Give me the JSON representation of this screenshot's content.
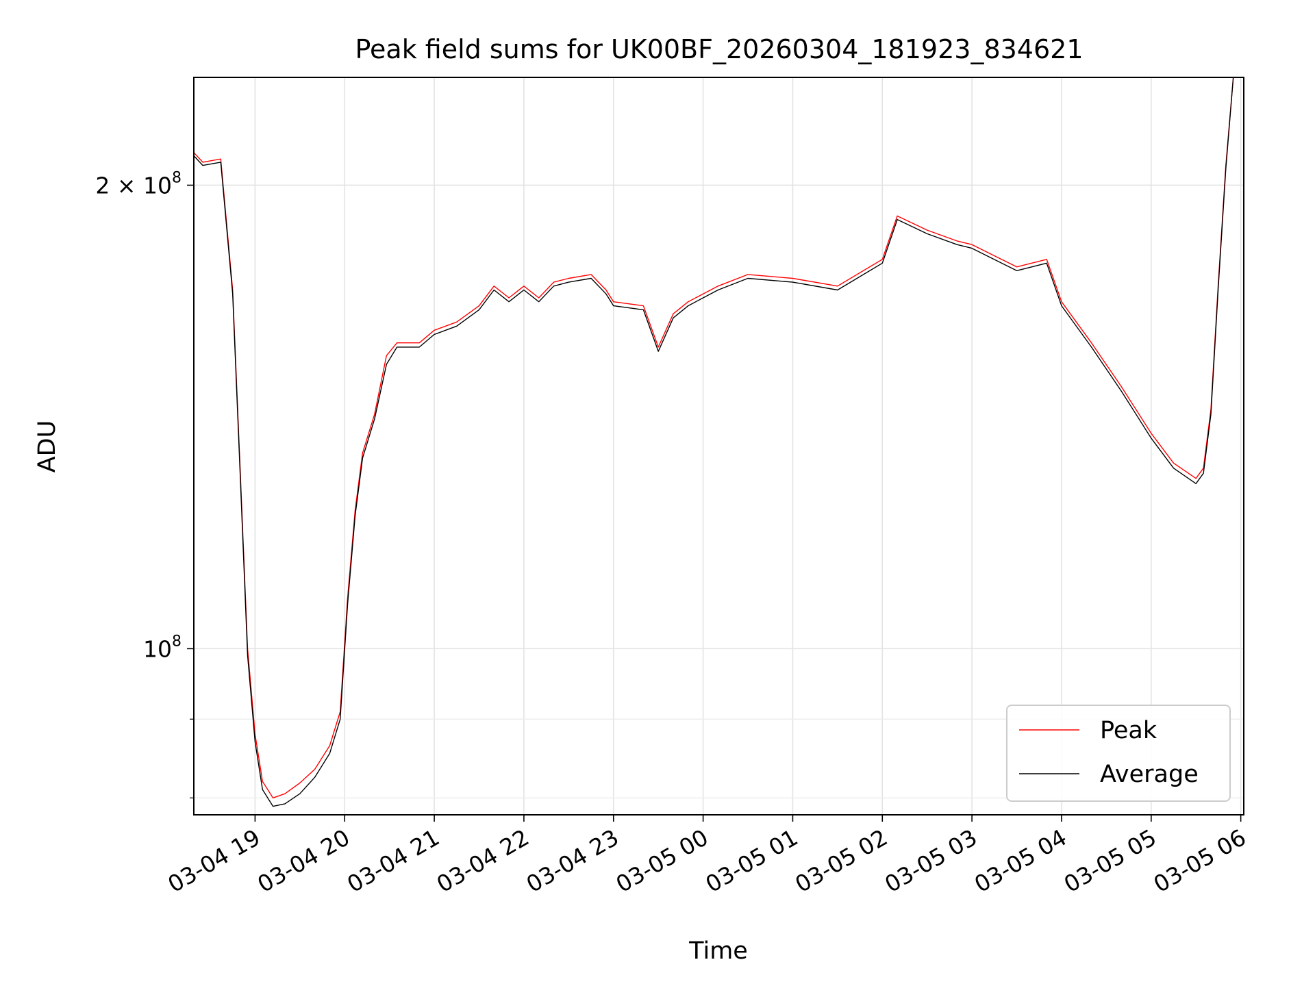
{
  "chart_data": {
    "type": "line",
    "title": "Peak field sums for UK00BF_20260304_181923_834621",
    "xlabel": "Time",
    "ylabel": "ADU",
    "yscale": "log",
    "ylim": [
      78000000,
      235000000
    ],
    "xlim": [
      "2026-03-04 18:19",
      "2026-03-05 06:02"
    ],
    "grid": true,
    "legend_position": "lower right",
    "x_ticks": [
      {
        "t": "2026-03-04 19:00",
        "label": "03-04 19"
      },
      {
        "t": "2026-03-04 20:00",
        "label": "03-04 20"
      },
      {
        "t": "2026-03-04 21:00",
        "label": "03-04 21"
      },
      {
        "t": "2026-03-04 22:00",
        "label": "03-04 22"
      },
      {
        "t": "2026-03-04 23:00",
        "label": "03-04 23"
      },
      {
        "t": "2026-03-05 00:00",
        "label": "03-05 00"
      },
      {
        "t": "2026-03-05 01:00",
        "label": "03-05 01"
      },
      {
        "t": "2026-03-05 02:00",
        "label": "03-05 02"
      },
      {
        "t": "2026-03-05 03:00",
        "label": "03-05 03"
      },
      {
        "t": "2026-03-05 04:00",
        "label": "03-05 04"
      },
      {
        "t": "2026-03-05 05:00",
        "label": "03-05 05"
      },
      {
        "t": "2026-03-05 06:00",
        "label": "03-05 06"
      }
    ],
    "y_ticks": [
      {
        "value": 100000000,
        "mant": "",
        "exp": "8",
        "base": "10"
      },
      {
        "value": 200000000,
        "mant": "2 × ",
        "exp": "8",
        "base": "10"
      }
    ],
    "y_minor_ticks": [
      80000000,
      90000000
    ],
    "series": [
      {
        "name": "Average",
        "color": "#000000",
        "points": [
          [
            "2026-03-04 18:19",
            209000000
          ],
          [
            "2026-03-04 18:25",
            206000000
          ],
          [
            "2026-03-04 18:37",
            207000000
          ],
          [
            "2026-03-04 18:45",
            170000000
          ],
          [
            "2026-03-04 18:50",
            130000000
          ],
          [
            "2026-03-04 18:55",
            99000000
          ],
          [
            "2026-03-04 19:00",
            87000000
          ],
          [
            "2026-03-04 19:05",
            81000000
          ],
          [
            "2026-03-04 19:12",
            79000000
          ],
          [
            "2026-03-04 19:20",
            79300000
          ],
          [
            "2026-03-04 19:30",
            80500000
          ],
          [
            "2026-03-04 19:40",
            82500000
          ],
          [
            "2026-03-04 19:50",
            85500000
          ],
          [
            "2026-03-04 19:57",
            90000000
          ],
          [
            "2026-03-04 20:02",
            107000000
          ],
          [
            "2026-03-04 20:07",
            122000000
          ],
          [
            "2026-03-04 20:12",
            133000000
          ],
          [
            "2026-03-04 20:20",
            141000000
          ],
          [
            "2026-03-04 20:28",
            153000000
          ],
          [
            "2026-03-04 20:35",
            157000000
          ],
          [
            "2026-03-04 20:50",
            157000000
          ],
          [
            "2026-03-04 21:00",
            160000000
          ],
          [
            "2026-03-04 21:15",
            162000000
          ],
          [
            "2026-03-04 21:30",
            166000000
          ],
          [
            "2026-03-04 21:40",
            171000000
          ],
          [
            "2026-03-04 21:50",
            168000000
          ],
          [
            "2026-03-04 22:00",
            171000000
          ],
          [
            "2026-03-04 22:10",
            168000000
          ],
          [
            "2026-03-04 22:20",
            172000000
          ],
          [
            "2026-03-04 22:30",
            173000000
          ],
          [
            "2026-03-04 22:45",
            174000000
          ],
          [
            "2026-03-04 22:55",
            170000000
          ],
          [
            "2026-03-04 23:00",
            167000000
          ],
          [
            "2026-03-04 23:20",
            166000000
          ],
          [
            "2026-03-04 23:30",
            156000000
          ],
          [
            "2026-03-04 23:40",
            164000000
          ],
          [
            "2026-03-04 23:50",
            167000000
          ],
          [
            "2026-03-05 00:00",
            169000000
          ],
          [
            "2026-03-05 00:10",
            171000000
          ],
          [
            "2026-03-05 00:30",
            174000000
          ],
          [
            "2026-03-05 01:00",
            173000000
          ],
          [
            "2026-03-05 01:30",
            171000000
          ],
          [
            "2026-03-05 02:00",
            178000000
          ],
          [
            "2026-03-05 02:10",
            190000000
          ],
          [
            "2026-03-05 02:30",
            186000000
          ],
          [
            "2026-03-05 02:50",
            183000000
          ],
          [
            "2026-03-05 03:00",
            182000000
          ],
          [
            "2026-03-05 03:30",
            176000000
          ],
          [
            "2026-03-05 03:50",
            178000000
          ],
          [
            "2026-03-05 04:00",
            167000000
          ],
          [
            "2026-03-05 04:20",
            157000000
          ],
          [
            "2026-03-05 04:40",
            147000000
          ],
          [
            "2026-03-05 05:00",
            137000000
          ],
          [
            "2026-03-05 05:15",
            131000000
          ],
          [
            "2026-03-05 05:30",
            128000000
          ],
          [
            "2026-03-05 05:35",
            130000000
          ],
          [
            "2026-03-05 05:40",
            142000000
          ],
          [
            "2026-03-05 05:45",
            172000000
          ],
          [
            "2026-03-05 05:50",
            205000000
          ],
          [
            "2026-03-05 05:55",
            235000000
          ]
        ]
      },
      {
        "name": "Peak",
        "color": "#ff0000",
        "points": [
          [
            "2026-03-04 18:19",
            210000000
          ],
          [
            "2026-03-04 18:25",
            207000000
          ],
          [
            "2026-03-04 18:37",
            208000000
          ],
          [
            "2026-03-04 18:45",
            171000000
          ],
          [
            "2026-03-04 18:50",
            131000000
          ],
          [
            "2026-03-04 18:55",
            100000000
          ],
          [
            "2026-03-04 19:00",
            88000000
          ],
          [
            "2026-03-04 19:05",
            82000000
          ],
          [
            "2026-03-04 19:12",
            80000000
          ],
          [
            "2026-03-04 19:20",
            80500000
          ],
          [
            "2026-03-04 19:30",
            81800000
          ],
          [
            "2026-03-04 19:40",
            83500000
          ],
          [
            "2026-03-04 19:50",
            86500000
          ],
          [
            "2026-03-04 19:57",
            91000000
          ],
          [
            "2026-03-04 20:02",
            108000000
          ],
          [
            "2026-03-04 20:07",
            123000000
          ],
          [
            "2026-03-04 20:12",
            134000000
          ],
          [
            "2026-03-04 20:20",
            142000000
          ],
          [
            "2026-03-04 20:28",
            155000000
          ],
          [
            "2026-03-04 20:35",
            158000000
          ],
          [
            "2026-03-04 20:50",
            158000000
          ],
          [
            "2026-03-04 21:00",
            161000000
          ],
          [
            "2026-03-04 21:15",
            163000000
          ],
          [
            "2026-03-04 21:30",
            167000000
          ],
          [
            "2026-03-04 21:40",
            172000000
          ],
          [
            "2026-03-04 21:50",
            169000000
          ],
          [
            "2026-03-04 22:00",
            172000000
          ],
          [
            "2026-03-04 22:10",
            169000000
          ],
          [
            "2026-03-04 22:20",
            173000000
          ],
          [
            "2026-03-04 22:30",
            174000000
          ],
          [
            "2026-03-04 22:45",
            175000000
          ],
          [
            "2026-03-04 22:55",
            171000000
          ],
          [
            "2026-03-04 23:00",
            168000000
          ],
          [
            "2026-03-04 23:20",
            167000000
          ],
          [
            "2026-03-04 23:30",
            157000000
          ],
          [
            "2026-03-04 23:40",
            165000000
          ],
          [
            "2026-03-04 23:50",
            168000000
          ],
          [
            "2026-03-05 00:00",
            170000000
          ],
          [
            "2026-03-05 00:10",
            172000000
          ],
          [
            "2026-03-05 00:30",
            175000000
          ],
          [
            "2026-03-05 01:00",
            174000000
          ],
          [
            "2026-03-05 01:30",
            172000000
          ],
          [
            "2026-03-05 02:00",
            179000000
          ],
          [
            "2026-03-05 02:10",
            191000000
          ],
          [
            "2026-03-05 02:30",
            187000000
          ],
          [
            "2026-03-05 02:50",
            184000000
          ],
          [
            "2026-03-05 03:00",
            183000000
          ],
          [
            "2026-03-05 03:30",
            177000000
          ],
          [
            "2026-03-05 03:50",
            179000000
          ],
          [
            "2026-03-05 04:00",
            168000000
          ],
          [
            "2026-03-05 04:20",
            158000000
          ],
          [
            "2026-03-05 04:40",
            148000000
          ],
          [
            "2026-03-05 05:00",
            138000000
          ],
          [
            "2026-03-05 05:15",
            132000000
          ],
          [
            "2026-03-05 05:30",
            129000000
          ],
          [
            "2026-03-05 05:35",
            131000000
          ],
          [
            "2026-03-05 05:40",
            143000000
          ],
          [
            "2026-03-05 05:45",
            173000000
          ],
          [
            "2026-03-05 05:50",
            206000000
          ],
          [
            "2026-03-05 05:55",
            235000000
          ]
        ]
      }
    ]
  }
}
